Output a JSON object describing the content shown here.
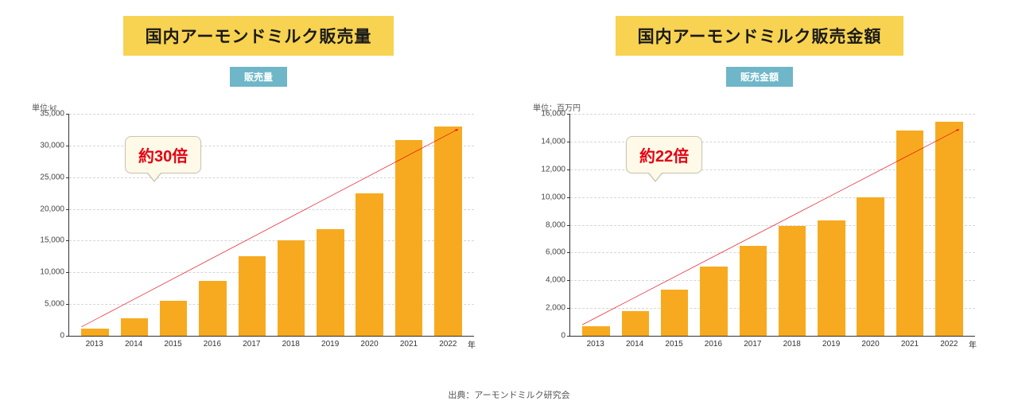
{
  "background_color": "#ffffff",
  "title_style": {
    "bg": "#f8d351",
    "color": "#1a1a1a",
    "fontsize": 21
  },
  "legend_style": {
    "bg": "#6eb6c8",
    "color": "#ffffff",
    "fontsize": 12
  },
  "axis_color": "#333333",
  "grid_color": "#d6d6d6",
  "tick_fontsize": 10,
  "bar_color": "#f7aa1f",
  "bar_width": 0.7,
  "arrow_color": "#e60012",
  "callout": {
    "bg": "#fff9e8",
    "border": "#c9c4b2",
    "text_color": "#e60012",
    "fontsize": 20
  },
  "x_axis_unit": "年",
  "charts": [
    {
      "title": "国内アーモンドミルク販売量",
      "legend": "販売量",
      "unit_label": "単位:kℓ",
      "type": "bar",
      "categories": [
        "2013",
        "2014",
        "2015",
        "2016",
        "2017",
        "2018",
        "2019",
        "2020",
        "2021",
        "2022"
      ],
      "values": [
        1100,
        2700,
        5500,
        8700,
        12500,
        15000,
        16800,
        22500,
        30800,
        33000
      ],
      "ylim": [
        0,
        35000
      ],
      "yticks": [
        0,
        5000,
        10000,
        15000,
        20000,
        25000,
        30000,
        35000
      ],
      "ytick_labels": [
        "0",
        "5,000",
        "10,000",
        "15,000",
        "20,000",
        "25,000",
        "30,000",
        "35,000"
      ],
      "callout_text": "約30倍",
      "arrow": {
        "x1_pct": 3,
        "y1_pct": 96,
        "x2_pct": 96,
        "y2_pct": 7
      }
    },
    {
      "title": "国内アーモンドミルク販売金額",
      "legend": "販売金額",
      "unit_label": "単位：百万円",
      "type": "bar",
      "categories": [
        "2013",
        "2014",
        "2015",
        "2016",
        "2017",
        "2018",
        "2019",
        "2020",
        "2021",
        "2022"
      ],
      "values": [
        700,
        1800,
        3300,
        5000,
        6500,
        7900,
        8300,
        10000,
        14800,
        15400
      ],
      "ylim": [
        0,
        16000
      ],
      "yticks": [
        0,
        2000,
        4000,
        6000,
        8000,
        10000,
        12000,
        14000,
        16000
      ],
      "ytick_labels": [
        "0",
        "2,000",
        "4,000",
        "6,000",
        "8,000",
        "10,000",
        "12,000",
        "14,000",
        "16,000"
      ],
      "callout_text": "約22倍",
      "arrow": {
        "x1_pct": 3,
        "y1_pct": 95,
        "x2_pct": 96,
        "y2_pct": 7
      }
    }
  ],
  "source": "出典：アーモンドミルク研究会"
}
